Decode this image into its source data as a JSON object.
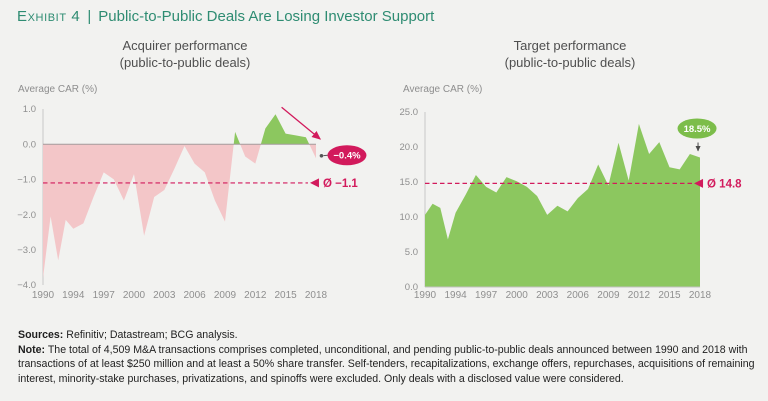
{
  "page": {
    "title_prefix": "Exhibit 4",
    "title_separator": "|",
    "title_main": "Public-to-Public Deals Are Losing Investor Support"
  },
  "colors": {
    "title_teal": "#2e8c72",
    "background": "#f2f2f0",
    "pink_area": "#f3c6c8",
    "green_area": "#8cc75f",
    "green_badge": "#7cbd4a",
    "crimson": "#d21a5c",
    "axis_gray": "#c8c8c8",
    "zero_line_gray": "#a39c9c",
    "tick_label_gray": "#8f8f8f",
    "connector_gray": "#555555"
  },
  "chart_data": [
    {
      "type": "area",
      "title_line1": "Acquirer performance",
      "title_line2": "(public-to-public deals)",
      "ylabel": "Average CAR (%)",
      "xlabel": "",
      "x": [
        1990,
        1991,
        1992,
        1993,
        1994,
        1995,
        1996,
        1997,
        1998,
        1999,
        2000,
        2001,
        2002,
        2003,
        2004,
        2005,
        2006,
        2007,
        2008,
        2009,
        2010,
        2011,
        2012,
        2013,
        2014,
        2015,
        2016,
        2017,
        2018
      ],
      "values": [
        -3.8,
        -2.05,
        -3.3,
        -2.15,
        -2.4,
        -2.25,
        -1.5,
        -0.8,
        -1.0,
        -1.6,
        -0.85,
        -2.6,
        -1.5,
        -1.3,
        -0.7,
        -0.05,
        -0.55,
        -0.8,
        -1.6,
        -2.2,
        0.35,
        -0.35,
        -0.55,
        0.45,
        0.85,
        0.3,
        0.25,
        0.2,
        -0.4
      ],
      "ylim": [
        -4.0,
        1.0
      ],
      "ytick_labels": [
        "1.0",
        "0.0",
        "−1.0",
        "−2.0",
        "−3.0",
        "−4.0"
      ],
      "yticks": [
        1.0,
        0.0,
        -1.0,
        -2.0,
        -3.0,
        -4.0
      ],
      "xticks": [
        1990,
        1994,
        1997,
        2000,
        2003,
        2006,
        2009,
        2012,
        2015,
        2018
      ],
      "grid": false,
      "positive_color": "#8cc75f",
      "negative_color": "#f3c6c8",
      "average_line": {
        "value": -1.1,
        "label": "Ø −1.1"
      },
      "end_badge": {
        "label": "−0.4%",
        "placement": "right",
        "color": "#d21a5c"
      },
      "trend_arrow": {
        "from": {
          "year": 2014.6,
          "value": 1.05
        },
        "to": {
          "year": 2018.4,
          "value": 0.15
        }
      }
    },
    {
      "type": "area",
      "title_line1": "Target performance",
      "title_line2": "(public-to-public deals)",
      "ylabel": "Average CAR (%)",
      "xlabel": "",
      "x": [
        1990,
        1991,
        1992,
        1993,
        1994,
        1995,
        1996,
        1997,
        1998,
        1999,
        2000,
        2001,
        2002,
        2003,
        2004,
        2005,
        2006,
        2007,
        2008,
        2009,
        2010,
        2011,
        2012,
        2013,
        2014,
        2015,
        2016,
        2017,
        2018
      ],
      "values": [
        10.3,
        11.9,
        11.3,
        6.8,
        10.6,
        13.2,
        16.0,
        14.3,
        13.5,
        15.7,
        15.1,
        14.3,
        13.0,
        10.3,
        11.6,
        10.8,
        12.7,
        14.0,
        17.5,
        14.5,
        20.6,
        15.2,
        23.3,
        19.0,
        20.7,
        17.1,
        16.8,
        19.0,
        18.5
      ],
      "ylim": [
        0.0,
        25.0
      ],
      "ytick_labels": [
        "25.0",
        "20.0",
        "15.0",
        "10.0",
        "5.0",
        "0.0"
      ],
      "yticks": [
        25.0,
        20.0,
        15.0,
        10.0,
        5.0,
        0.0
      ],
      "xticks": [
        1990,
        1994,
        1997,
        2000,
        2003,
        2006,
        2009,
        2012,
        2015,
        2018
      ],
      "grid": false,
      "positive_color": "#8cc75f",
      "negative_color": "#f3c6c8",
      "average_line": {
        "value": 14.8,
        "label": "Ø 14.8"
      },
      "end_badge": {
        "label": "18.5%",
        "placement": "above",
        "color": "#7cbd4a"
      }
    }
  ],
  "footer": {
    "sources_label": "Sources:",
    "sources_text": " Refinitiv; Datastream; BCG analysis.",
    "note_label": "Note:",
    "note_text": " The total of 4,509 M&A transactions comprises completed, unconditional, and pending public-to-public deals announced between 1990 and 2018 with transactions of at least $250 million and at least a 50% share transfer. Self-tenders, recapitalizations, exchange offers, repurchases, acquisitions of remaining interest, minority-stake purchases, privatizations, and spinoffs were excluded. Only deals with a disclosed value were considered."
  }
}
